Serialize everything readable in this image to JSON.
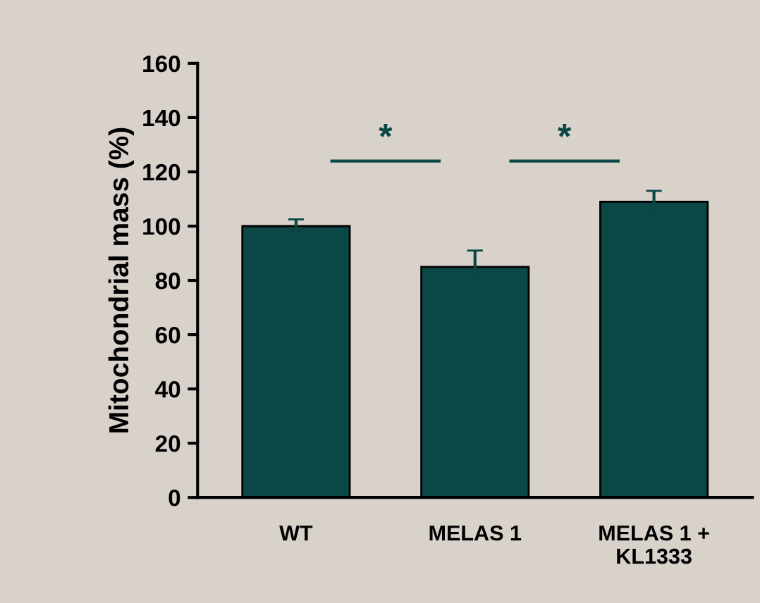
{
  "chart_data": {
    "type": "bar",
    "ylabel": "Mitochondrial mass (%)",
    "categories": [
      "WT",
      "MELAS 1",
      "MELAS 1 +\nKL1333"
    ],
    "values": [
      100,
      85,
      109
    ],
    "errors": [
      2.5,
      6,
      4
    ],
    "color": "#0b4745",
    "ylim": [
      0,
      160
    ],
    "yticks": [
      0,
      20,
      40,
      60,
      80,
      100,
      120,
      140,
      160
    ],
    "annotations": [
      "*",
      "*"
    ],
    "grid": false
  }
}
